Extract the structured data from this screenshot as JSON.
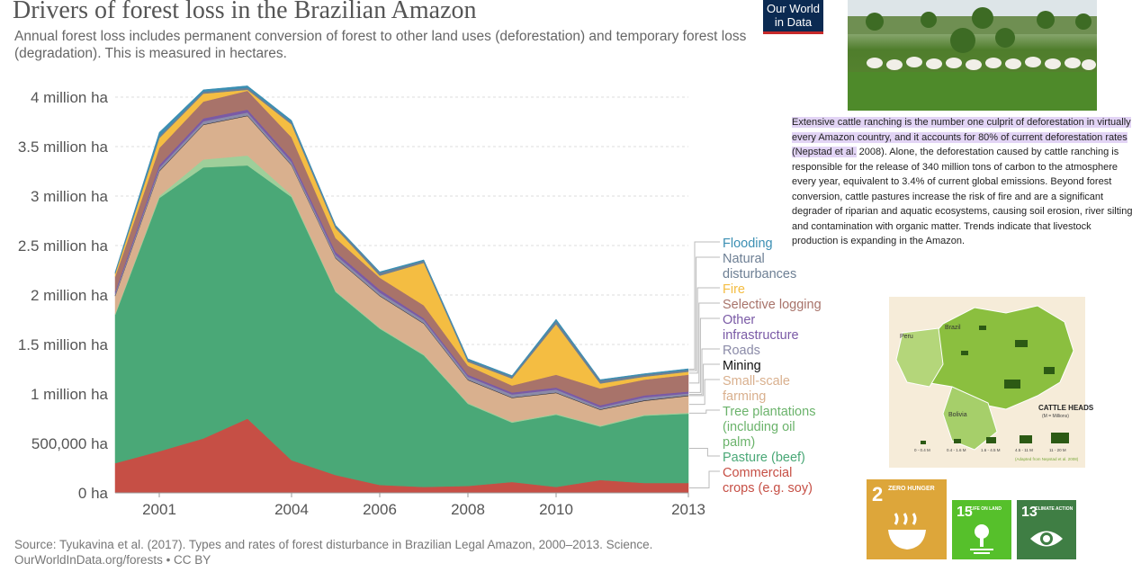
{
  "header": {
    "title": "Drivers of forest loss in the Brazilian Amazon",
    "subtitle": "Annual forest loss includes permanent conversion of forest to other land uses (deforestation) and temporary forest loss (degradation). This is measured in hectares.",
    "logo_line1": "Our World",
    "logo_line2": "in Data"
  },
  "footer": {
    "source": "Source: Tyukavina et al. (2017). Types and rates of forest disturbance in Brazilian Legal Amazon, 2000–2013. Science.",
    "license": "OurWorldInData.org/forests • CC BY"
  },
  "chart_data": {
    "type": "area",
    "stacked": true,
    "x": [
      2000,
      2001,
      2002,
      2003,
      2004,
      2005,
      2006,
      2007,
      2008,
      2009,
      2010,
      2011,
      2012,
      2013
    ],
    "xticks": [
      2001,
      2004,
      2006,
      2008,
      2010,
      2013
    ],
    "xtick_labels": [
      "2001",
      "2004",
      "2006",
      "2008",
      "2010",
      "2013"
    ],
    "yticks": [
      0,
      500000,
      1000000,
      1500000,
      2000000,
      2500000,
      3000000,
      3500000,
      4000000
    ],
    "ytick_labels": [
      "0 ha",
      "500,000 ha",
      "1 million ha",
      "1.5 million ha",
      "2 million ha",
      "2.5 million ha",
      "3 million ha",
      "3.5 million ha",
      "4 million ha"
    ],
    "ylim": [
      0,
      4200000
    ],
    "series": [
      {
        "name": "Commercial crops (e.g. soy)",
        "color": "#c64f45",
        "values": [
          300000,
          420000,
          550000,
          750000,
          330000,
          180000,
          80000,
          60000,
          70000,
          110000,
          60000,
          130000,
          100000,
          100000
        ]
      },
      {
        "name": "Pasture (beef)",
        "color": "#4aa877",
        "values": [
          1500000,
          2560000,
          2740000,
          2560000,
          2660000,
          1850000,
          1580000,
          1330000,
          830000,
          600000,
          730000,
          540000,
          680000,
          700000
        ]
      },
      {
        "name": "Tree plantations (including oil palm)",
        "color": "#9ecf9a",
        "values": [
          10000,
          20000,
          80000,
          100000,
          20000,
          10000,
          10000,
          10000,
          10000,
          10000,
          10000,
          10000,
          10000,
          10000
        ]
      },
      {
        "name": "Small-scale farming",
        "color": "#d9b08e",
        "values": [
          180000,
          250000,
          350000,
          400000,
          300000,
          330000,
          320000,
          310000,
          230000,
          240000,
          210000,
          160000,
          140000,
          170000
        ]
      },
      {
        "name": "Mining",
        "color": "#222222",
        "values": [
          5000,
          5000,
          5000,
          5000,
          5000,
          5000,
          5000,
          5000,
          5000,
          5000,
          5000,
          5000,
          5000,
          5000
        ]
      },
      {
        "name": "Roads",
        "color": "#8b8ba8",
        "values": [
          20000,
          30000,
          30000,
          30000,
          30000,
          30000,
          30000,
          30000,
          30000,
          30000,
          30000,
          20000,
          30000,
          20000
        ]
      },
      {
        "name": "Other infrastructure",
        "color": "#7a5aa6",
        "values": [
          20000,
          30000,
          30000,
          30000,
          30000,
          30000,
          30000,
          20000,
          20000,
          20000,
          20000,
          20000,
          20000,
          20000
        ]
      },
      {
        "name": "Selective logging",
        "color": "#a8736a",
        "values": [
          150000,
          170000,
          170000,
          190000,
          220000,
          140000,
          120000,
          130000,
          90000,
          70000,
          130000,
          170000,
          160000,
          170000
        ]
      },
      {
        "name": "Fire",
        "color": "#f4bd42",
        "values": [
          30000,
          100000,
          80000,
          10000,
          130000,
          100000,
          20000,
          430000,
          40000,
          70000,
          510000,
          50000,
          30000,
          30000
        ]
      },
      {
        "name": "Natural disturbances",
        "color": "#6d7f94",
        "values": [
          10000,
          20000,
          20000,
          20000,
          20000,
          20000,
          30000,
          20000,
          20000,
          20000,
          30000,
          30000,
          20000,
          20000
        ]
      },
      {
        "name": "Flooding",
        "color": "#3b8fb3",
        "values": [
          10000,
          40000,
          20000,
          20000,
          20000,
          10000,
          10000,
          10000,
          10000,
          10000,
          20000,
          10000,
          10000,
          10000
        ]
      }
    ]
  },
  "legend_labels": [
    {
      "series": 10,
      "lines": [
        "Flooding"
      ]
    },
    {
      "series": 9,
      "lines": [
        "Natural",
        "disturbances"
      ]
    },
    {
      "series": 8,
      "lines": [
        "Fire"
      ]
    },
    {
      "series": 7,
      "lines": [
        "Selective logging"
      ]
    },
    {
      "series": 6,
      "lines": [
        "Other",
        "infrastructure"
      ]
    },
    {
      "series": 5,
      "lines": [
        "Roads"
      ]
    },
    {
      "series": 4,
      "lines": [
        "Mining"
      ]
    },
    {
      "series": 3,
      "lines": [
        "Small-scale",
        "farming"
      ]
    },
    {
      "series": 2,
      "lines": [
        "Tree plantations",
        "(including oil",
        "palm)"
      ]
    },
    {
      "series": 1,
      "lines": [
        "Pasture (beef)"
      ]
    },
    {
      "series": 0,
      "lines": [
        "Commercial",
        "crops (e.g. soy)"
      ]
    }
  ],
  "article": {
    "highlight_lines": [
      "Extensive cattle ranching is the number one culprit of deforestation in virtually",
      "every Amazon country, and it accounts for 80% of current deforestation rates"
    ],
    "highlight_ref": "(Nepstad et al.",
    "lines": [
      " 2008). Alone, the deforestation caused by cattle ranching is",
      "responsible for the release of 340 million tons of carbon to the atmosphere",
      "every year, equivalent to 3.4% of current global emissions. Beyond forest",
      "conversion, cattle pastures increase the risk of fire and are a significant",
      "degrader of riparian and aquatic ecosystems, causing soil erosion, river silting",
      "and contamination with organic matter. Trends indicate that livestock",
      "production is expanding in the Amazon."
    ]
  },
  "map": {
    "labels": [
      "Peru",
      "Brazil",
      "Bolivia"
    ],
    "legend_title": "CATTLE HEADS",
    "legend_sub": "(M = Millions)",
    "scale": [
      "0 - 0.4 M",
      "0.4 - 1.6 M",
      "1.6 - 4.5 M",
      "4.5 - 11 M",
      "11 - 20 M"
    ],
    "credit": "(Adapted from Nepstad et al. 2008)"
  },
  "sdg": [
    {
      "num": "2",
      "label": "ZERO HUNGER",
      "color": "#dda63a"
    },
    {
      "num": "15",
      "label": "LIFE ON LAND",
      "color": "#56c02b"
    },
    {
      "num": "13",
      "label": "CLIMATE ACTION",
      "color": "#3f7e44"
    }
  ]
}
